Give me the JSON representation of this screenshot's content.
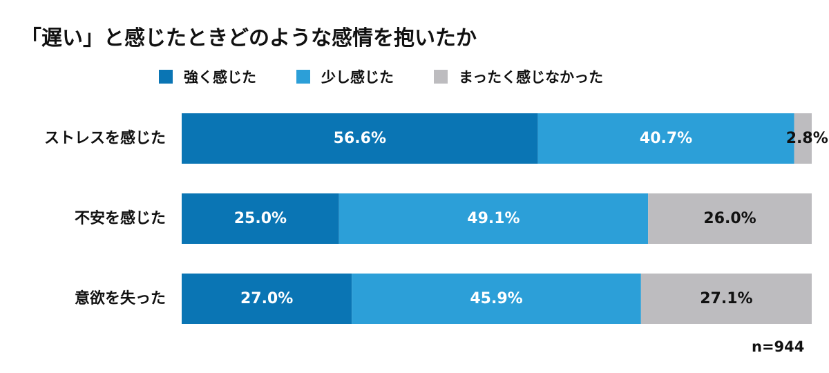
{
  "chart_data": {
    "type": "bar",
    "orientation": "horizontal",
    "stacked": true,
    "percent": true,
    "title": "「遅い」と感じたときどのような感情を抱いたか",
    "categories": [
      "ストレスを感じた",
      "不安を感じた",
      "意欲を失った"
    ],
    "series": [
      {
        "name": "強く感じた",
        "color": "#0a75b4",
        "label_color": "#ffffff",
        "values": [
          56.6,
          25.0,
          27.0
        ]
      },
      {
        "name": "少し感じた",
        "color": "#2c9fd8",
        "label_color": "#ffffff",
        "values": [
          40.7,
          49.1,
          45.9
        ]
      },
      {
        "name": "まったく感じなかった",
        "color": "#bdbcbf",
        "label_color": "#111111",
        "values": [
          2.8,
          26.0,
          27.1
        ]
      }
    ],
    "data_labels": [
      [
        "56.6%",
        "40.7%",
        "2.8%"
      ],
      [
        "25.0%",
        "49.1%",
        "26.0%"
      ],
      [
        "27.0%",
        "45.9%",
        "27.1%"
      ]
    ],
    "legend_position": "top",
    "grid": false,
    "note": "n=944"
  }
}
